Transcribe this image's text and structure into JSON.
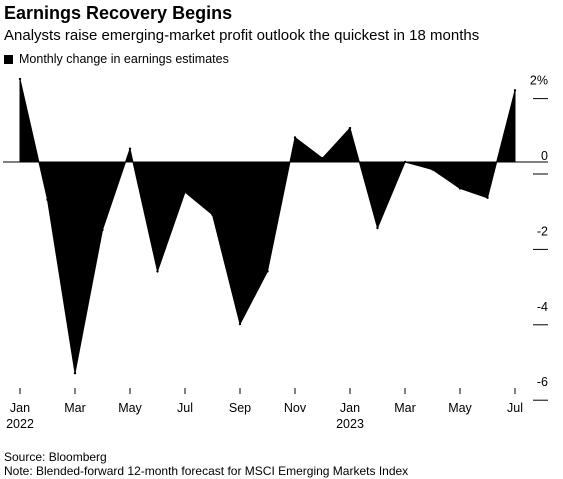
{
  "header": {
    "title": "Earnings Recovery Begins",
    "subtitle": "Analysts raise emerging-market profit outlook the quickest in 18 months"
  },
  "chart_data": {
    "type": "area",
    "title": "Earnings Recovery Begins",
    "subtitle": "Analysts raise emerging-market profit outlook the quickest in 18 months",
    "legend": {
      "entries": [
        "Monthly change in earnings estimates"
      ],
      "placement": "top-left"
    },
    "series": [
      {
        "name": "Monthly change in earnings estimates",
        "color": "#000000",
        "x": [
          "2022-01",
          "2022-02",
          "2022-03",
          "2022-04",
          "2022-05",
          "2022-06",
          "2022-07",
          "2022-08",
          "2022-09",
          "2022-10",
          "2022-11",
          "2022-12",
          "2023-01",
          "2023-02",
          "2023-03",
          "2023-04",
          "2023-05",
          "2023-06",
          "2023-07"
        ],
        "values": [
          2.2,
          -1.0,
          -5.6,
          -1.8,
          0.35,
          -2.9,
          -0.8,
          -1.4,
          -4.3,
          -2.9,
          0.65,
          0.1,
          0.9,
          -1.75,
          0.0,
          -0.2,
          -0.7,
          -0.95,
          1.9
        ]
      }
    ],
    "ylim": [
      -6,
      2
    ],
    "yticks": [
      2,
      0,
      -2,
      -4,
      -6
    ],
    "ytick_labels": [
      "2%",
      "0",
      "-2",
      "-4",
      "-6"
    ],
    "xticks": [
      "Jan",
      "Mar",
      "May",
      "Jul",
      "Sep",
      "Nov",
      "Jan",
      "Mar",
      "May",
      "Jul"
    ],
    "xtick_years": [
      "2022",
      "",
      "",
      "",
      "",
      "",
      "2023",
      "",
      "",
      ""
    ],
    "xlabel": "",
    "ylabel": "",
    "grid": false
  },
  "footer": {
    "source": "Source: Bloomberg",
    "note": "Note: Blended-forward 12-month forecast for MSCI Emerging Markets Index"
  }
}
